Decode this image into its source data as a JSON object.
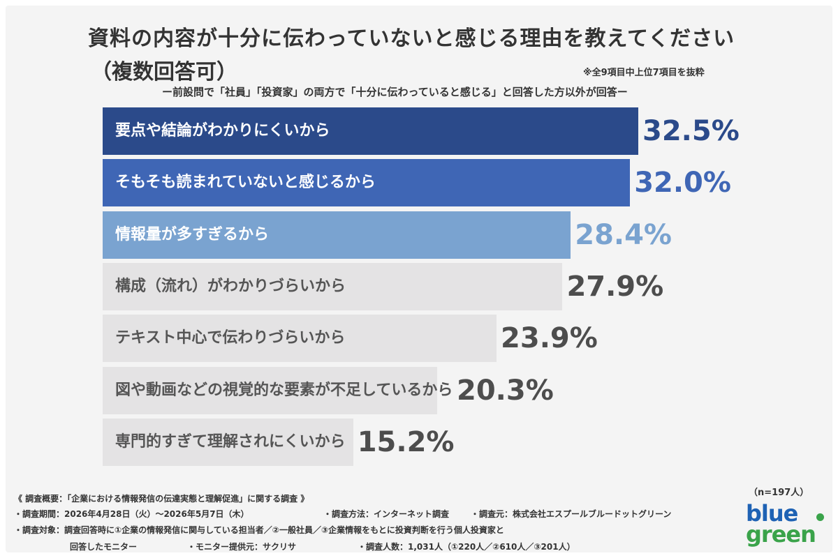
{
  "chart_data": {
    "type": "bar",
    "orientation": "horizontal",
    "title": "資料の内容が十分に伝わっていないと感じる理由を教えてください",
    "title_line2": "（複数回答可）",
    "subtitle": "ー前設問で「社員」「投資家」の両方で「十分に伝わっていると感じる」と回答した方以外が回答ー",
    "note": "※全9項目中上位7項目を抜粋",
    "categories": [
      "要点や結論がわかりにくいから",
      "そもそも読まれていないと感じるから",
      "情報量が多すぎるから",
      "構成（流れ）がわかりづらいから",
      "テキスト中心で伝わりづらいから",
      "図や動画などの視覚的な要素が不足しているから",
      "専門的すぎて理解されにくいから"
    ],
    "values": [
      32.5,
      32.0,
      28.4,
      27.9,
      23.9,
      20.3,
      15.2
    ],
    "value_labels": [
      "32.5%",
      "32.0%",
      "28.4%",
      "27.9%",
      "23.9%",
      "20.3%",
      "15.2%"
    ],
    "unit": "%",
    "sample_size": "（n=197人）",
    "colors": {
      "bars": [
        "#2b4a8a",
        "#3f66b5",
        "#7aa3d0",
        "#e4e3e4",
        "#e4e3e4",
        "#e4e3e4",
        "#e4e3e4"
      ],
      "values": [
        "#2b4a8a",
        "#3f66b5",
        "#7aa3d0",
        "#4d4d4d",
        "#4d4d4d",
        "#4d4d4d",
        "#4d4d4d"
      ],
      "labels": [
        "#ffffff",
        "#ffffff",
        "#ffffff",
        "#555555",
        "#555555",
        "#555555",
        "#555555"
      ]
    }
  },
  "footer": {
    "line1": "《 調査概要：「企業における情報発信の伝達実態と理解促進」に関する調査 》",
    "line2a": "・調査期間：2026年4月28日（火）〜2026年5月7日（木）",
    "line2b": "・調査方法：インターネット調査",
    "line2c": "・調査元：株式会社エスプールブルードットグリーン",
    "line3": "・調査対象：調査回答時に①企業の情報発信に関与している担当者／②一般社員／③企業情報をもとに投資判断を行う個人投資家と",
    "line4a": "回答したモニター",
    "line4b": "・モニター提供元：サクリサ",
    "line4c": "・調査人数：1,031人（①220人／②610人／③201人）"
  },
  "logo": {
    "top": "blue",
    "bottom": "green"
  }
}
